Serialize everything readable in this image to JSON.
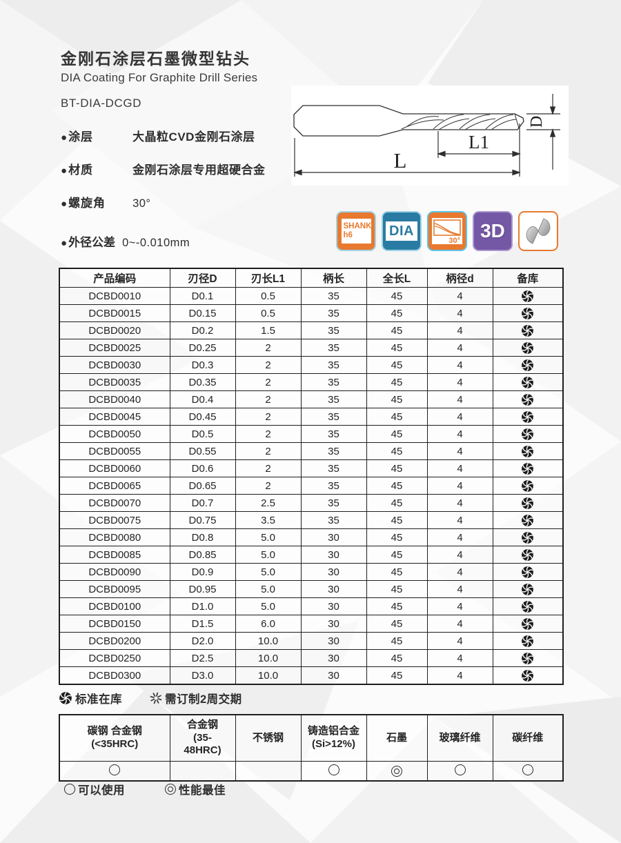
{
  "header": {
    "title_cn": "金刚石涂层石墨微型钻头",
    "title_en": "DIA Coating For Graphite Drill Series",
    "model": "BT-DIA-DCGD"
  },
  "specs": [
    {
      "label": "涂层",
      "value": "大晶粒CVD金刚石涂层"
    },
    {
      "label": "材质",
      "value": "金刚石涂层专用超硬合金"
    },
    {
      "label": "螺旋角",
      "value": "30°"
    },
    {
      "label": "外径公差",
      "value": "0~-0.010mm"
    }
  ],
  "diagram": {
    "dim_flute_length": "L1",
    "dim_overall_length": "L",
    "dim_diameter": "D"
  },
  "badges": [
    {
      "id": "shank-h6",
      "style": "shank",
      "lines": [
        "SHANK",
        "h6"
      ],
      "bg": "#e8792e",
      "border": "#9ed3e8",
      "fg": "#e8792e"
    },
    {
      "id": "dia-coating",
      "style": "dia",
      "lines": [
        "DIA"
      ],
      "bg": "#2a7ba3",
      "border": "#9ed3e8",
      "fg": "#2a7ba3"
    },
    {
      "id": "helix-angle",
      "style": "helix",
      "lines": [
        "30°"
      ],
      "bg": "#e8792e",
      "border": "#5bc2e7",
      "fg": "#e8792e"
    },
    {
      "id": "three-d",
      "style": "3d",
      "lines": [
        "3D"
      ],
      "bg": "#7457a5",
      "border": "#ab97cf",
      "fg": "#ffffff"
    },
    {
      "id": "drill-tip",
      "style": "drill",
      "lines": [],
      "bg": "#ffffff",
      "border": "#e8792e",
      "fg": "#9a9a9a"
    }
  ],
  "product_table": {
    "headers": [
      "产品编码",
      "刃径D",
      "刃长L1",
      "柄长",
      "全长L",
      "柄径d",
      "备库"
    ],
    "rows": [
      [
        "DCBD0010",
        "D0.1",
        "0.5",
        "35",
        "45",
        "4",
        "stock"
      ],
      [
        "DCBD0015",
        "D0.15",
        "0.5",
        "35",
        "45",
        "4",
        "stock"
      ],
      [
        "DCBD0020",
        "D0.2",
        "1.5",
        "35",
        "45",
        "4",
        "stock"
      ],
      [
        "DCBD0025",
        "D0.25",
        "2",
        "35",
        "45",
        "4",
        "stock"
      ],
      [
        "DCBD0030",
        "D0.3",
        "2",
        "35",
        "45",
        "4",
        "stock"
      ],
      [
        "DCBD0035",
        "D0.35",
        "2",
        "35",
        "45",
        "4",
        "stock"
      ],
      [
        "DCBD0040",
        "D0.4",
        "2",
        "35",
        "45",
        "4",
        "stock"
      ],
      [
        "DCBD0045",
        "D0.45",
        "2",
        "35",
        "45",
        "4",
        "stock"
      ],
      [
        "DCBD0050",
        "D0.5",
        "2",
        "35",
        "45",
        "4",
        "stock"
      ],
      [
        "DCBD0055",
        "D0.55",
        "2",
        "35",
        "45",
        "4",
        "stock"
      ],
      [
        "DCBD0060",
        "D0.6",
        "2",
        "35",
        "45",
        "4",
        "stock"
      ],
      [
        "DCBD0065",
        "D0.65",
        "2",
        "35",
        "45",
        "4",
        "stock"
      ],
      [
        "DCBD0070",
        "D0.7",
        "2.5",
        "35",
        "45",
        "4",
        "stock"
      ],
      [
        "DCBD0075",
        "D0.75",
        "3.5",
        "35",
        "45",
        "4",
        "stock"
      ],
      [
        "DCBD0080",
        "D0.8",
        "5.0",
        "30",
        "45",
        "4",
        "stock"
      ],
      [
        "DCBD0085",
        "D0.85",
        "5.0",
        "30",
        "45",
        "4",
        "stock"
      ],
      [
        "DCBD0090",
        "D0.9",
        "5.0",
        "30",
        "45",
        "4",
        "stock"
      ],
      [
        "DCBD0095",
        "D0.95",
        "5.0",
        "30",
        "45",
        "4",
        "stock"
      ],
      [
        "DCBD0100",
        "D1.0",
        "5.0",
        "30",
        "45",
        "4",
        "stock"
      ],
      [
        "DCBD0150",
        "D1.5",
        "6.0",
        "30",
        "45",
        "4",
        "stock"
      ],
      [
        "DCBD0200",
        "D2.0",
        "10.0",
        "30",
        "45",
        "4",
        "stock"
      ],
      [
        "DCBD0250",
        "D2.5",
        "10.0",
        "30",
        "45",
        "4",
        "stock"
      ],
      [
        "DCBD0300",
        "D3.0",
        "10.0",
        "30",
        "45",
        "4",
        "stock"
      ]
    ]
  },
  "stock_legend": [
    {
      "icon": "swirl",
      "label": "标准在库"
    },
    {
      "icon": "dashed-star",
      "label": "需订制2周交期"
    }
  ],
  "materials_table": {
    "headers": [
      "碳钢 合金钢\n(<35HRC)",
      "合金钢\n(35-\n48HRC)",
      "不锈钢",
      "铸造铝合金\n(Si>12%)",
      "石墨",
      "玻璃纤维",
      "碳纤维"
    ],
    "ratings": [
      "usable",
      "",
      "",
      "usable",
      "best",
      "usable",
      "usable"
    ]
  },
  "rating_legend": [
    {
      "rating": "usable",
      "symbol": "○",
      "label": "可以使用"
    },
    {
      "rating": "best",
      "symbol": "◎",
      "label": "性能最佳"
    }
  ],
  "colors": {
    "orange": "#e8792e",
    "teal": "#2a7ba3",
    "purple": "#7457a5",
    "light_blue": "#9ed3e8",
    "ink": "#1d1d1d"
  }
}
